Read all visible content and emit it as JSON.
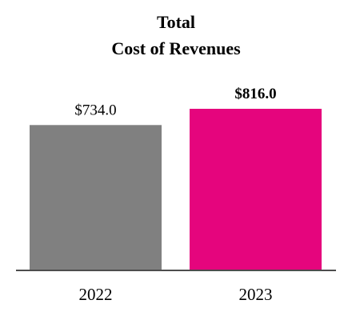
{
  "chart_data": {
    "type": "bar",
    "title": "Total Cost of Revenues",
    "title_lines": [
      "Total",
      "Cost of Revenues"
    ],
    "categories": [
      "2022",
      "2023"
    ],
    "values": [
      734.0,
      816.0
    ],
    "value_labels": [
      "$734.0",
      "$816.0"
    ],
    "value_label_bold": [
      false,
      true
    ],
    "colors": [
      "#808080",
      "#e5057d"
    ],
    "axis_color": "#4d4d4d",
    "ylim": [
      0,
      816.0
    ],
    "xlabel": "",
    "ylabel": "",
    "grid": false,
    "legend": "none"
  }
}
